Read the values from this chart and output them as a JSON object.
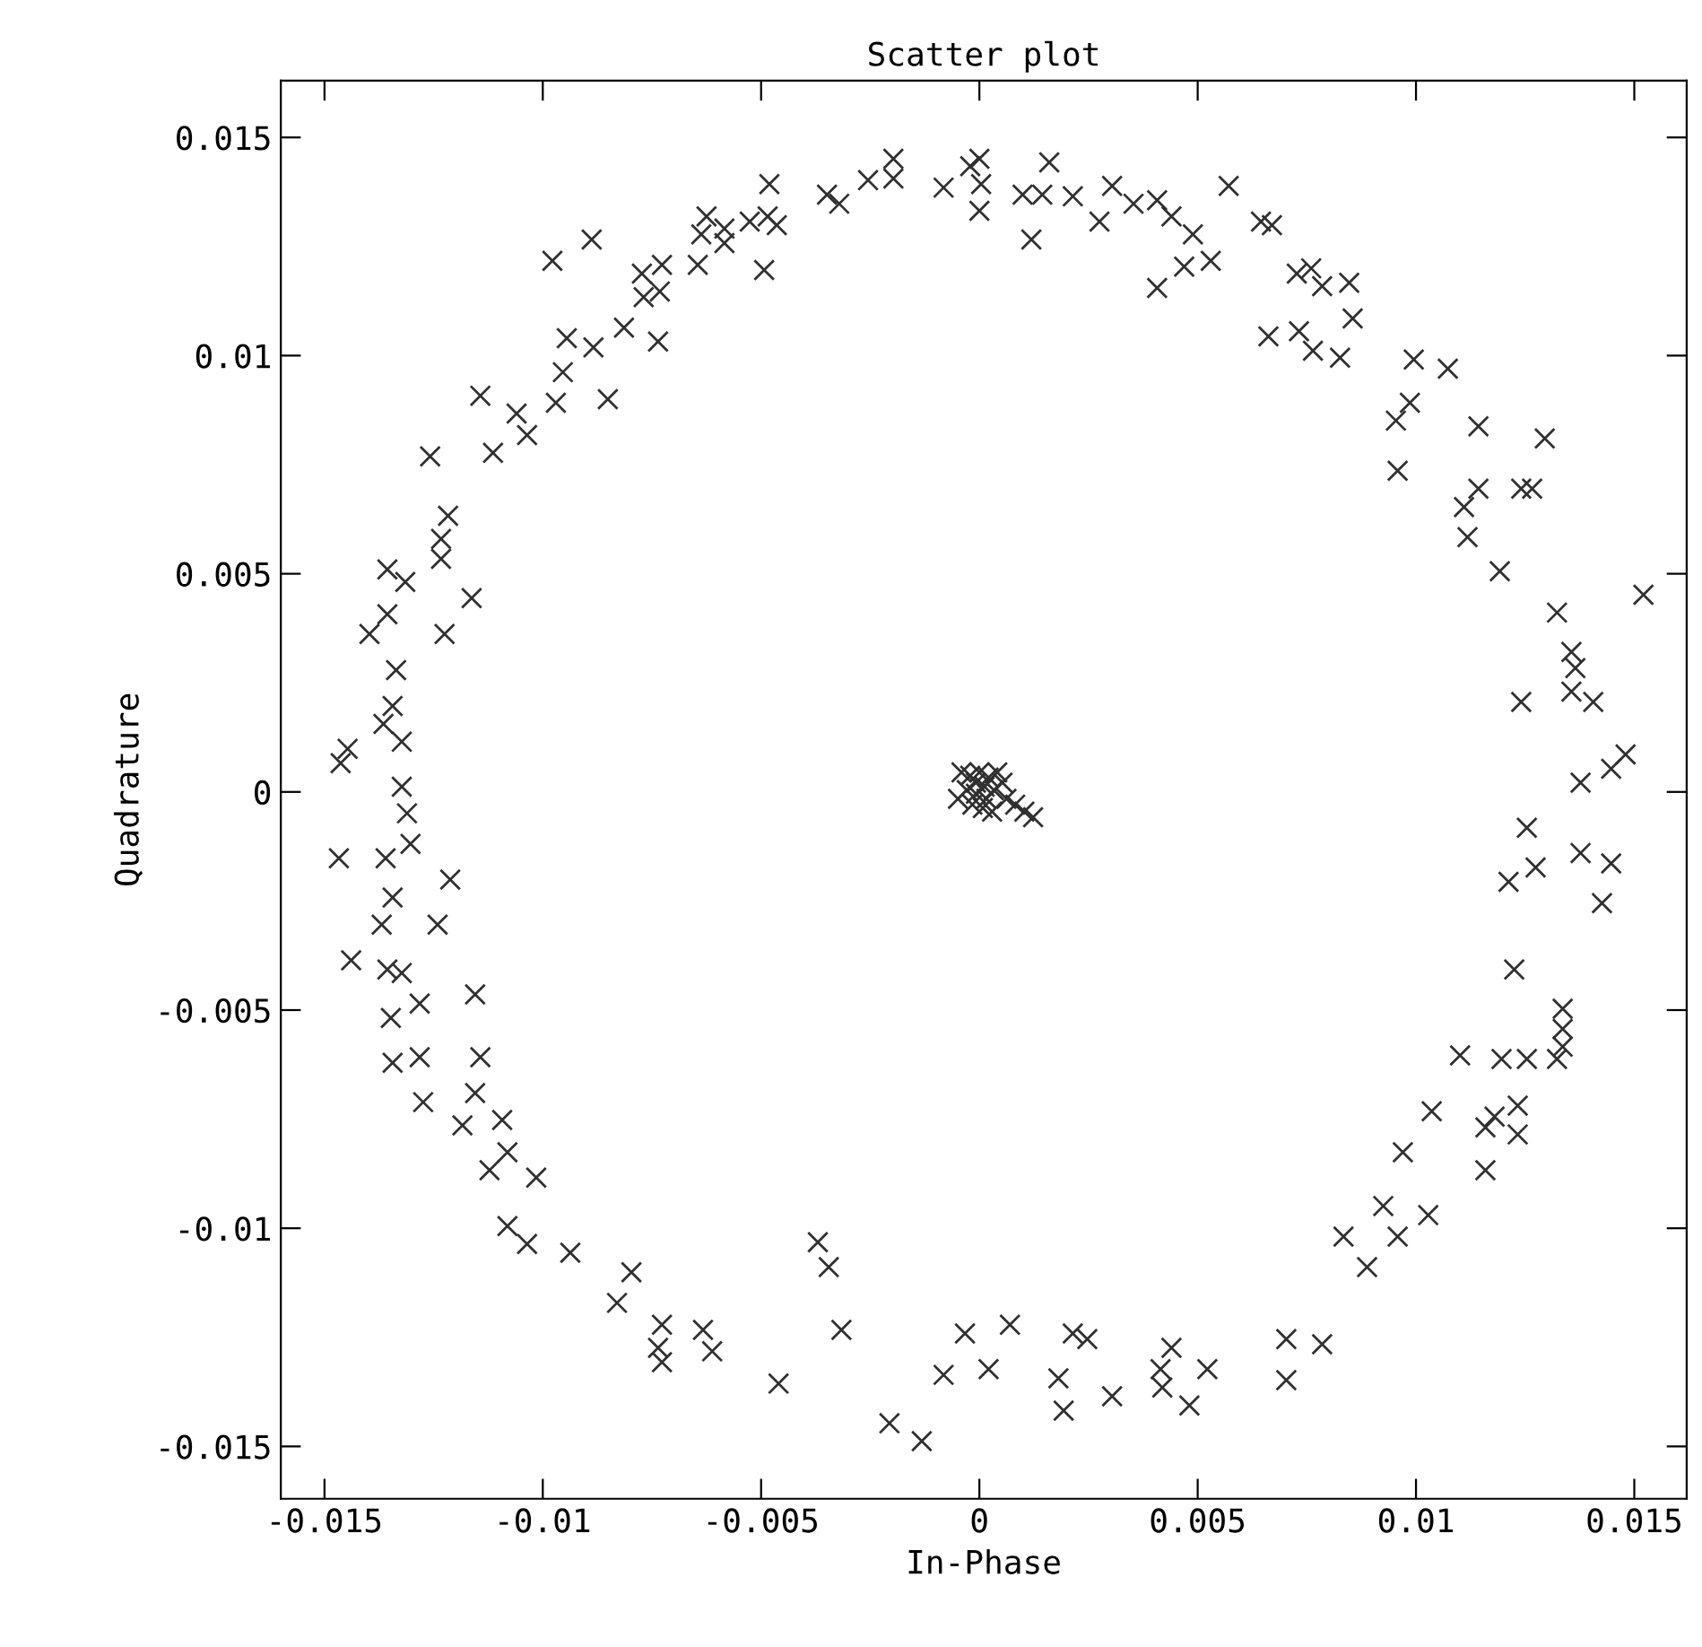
{
  "chart_data": {
    "type": "scatter",
    "title": "Scatter plot",
    "xlabel": "In-Phase",
    "ylabel": "Quadrature",
    "xlim": [
      -0.016,
      0.0162
    ],
    "ylim": [
      -0.0162,
      0.0163
    ],
    "xticks": [
      -0.015,
      -0.01,
      -0.005,
      0,
      0.005,
      0.01,
      0.015
    ],
    "yticks": [
      -0.015,
      -0.01,
      -0.005,
      0,
      0.005,
      0.01,
      0.015
    ],
    "grid": false,
    "legend": false,
    "marker": "cross",
    "series": [
      {
        "color": "#303030",
        "x": [
          -0.00481,
          -0.00349,
          -0.00321,
          -0.00255,
          -0.00197,
          -0.00197,
          -0.00082,
          -0.00021,
          0.0,
          -0.00625,
          -0.00637,
          -0.00584,
          -0.00584,
          -0.00526,
          -0.00485,
          -0.00464,
          -0.00493,
          -0.00645,
          -0.00727,
          -0.00773,
          -0.00769,
          -0.00732,
          -0.00736,
          -0.00814,
          -0.00884,
          -0.00945,
          -0.00954,
          -0.00851,
          -0.0097,
          -0.0106,
          -0.01036,
          -0.01114,
          -0.01143,
          -0.00978,
          -0.00888,
          -0.01258,
          -0.01217,
          -0.01233,
          -0.01233,
          -0.01163,
          -0.01225,
          -0.01356,
          -0.01315,
          -0.01356,
          -0.01397,
          -0.01336,
          -0.01344,
          -0.01365,
          -0.01323,
          -0.01447,
          -0.01463,
          -0.01323,
          0.0,
          4e-05,
          0.0016,
          0.00099,
          0.00144,
          0.00214,
          0.00119,
          0.00304,
          0.00275,
          0.00353,
          0.00407,
          0.0044,
          0.00489,
          0.00469,
          0.0053,
          0.00407,
          0.00571,
          0.00645,
          0.0067,
          0.00727,
          0.0076,
          0.00785,
          0.00847,
          0.00855,
          0.00662,
          0.00732,
          0.00764,
          0.00826,
          0.00995,
          0.01073,
          0.00986,
          0.00954,
          0.01143,
          0.01295,
          0.00958,
          0.01143,
          0.0111,
          0.01118,
          0.01241,
          0.01266,
          0.01192,
          0.01323,
          0.01521,
          0.01356,
          0.01365,
          0.01356,
          0.01406,
          0.01241,
          0.01377,
          0.01447,
          0.0148,
          -0.01311,
          -0.01303,
          -0.01467,
          -0.0136,
          -0.01212,
          -0.01344,
          -0.01369,
          -0.01241,
          -0.01439,
          -0.01356,
          -0.01323,
          -0.01282,
          -0.01348,
          -0.01155,
          -0.01344,
          -0.01282,
          -0.01143,
          -0.01274,
          -0.01155,
          -0.01184,
          -0.01093,
          -0.01081,
          -0.01122,
          -0.01015,
          -0.01081,
          -0.01036,
          -0.00937,
          -0.00797,
          -0.0083,
          -0.00727,
          -0.00736,
          -0.00727,
          -0.00633,
          -0.00612,
          -0.0046,
          -0.0037,
          -0.00345,
          -0.00316,
          -0.00206,
          -0.00132,
          -0.00082,
          -0.00033,
          0.00021,
          0.0007,
          0.00214,
          0.00247,
          0.00181,
          0.00193,
          0.00304,
          0.0044,
          0.00415,
          0.00419,
          0.00481,
          0.00522,
          0.00703,
          0.00785,
          0.00703,
          0.00834,
          0.00925,
          0.00958,
          0.00888,
          0.01028,
          0.0097,
          0.01036,
          0.01159,
          0.0118,
          0.01233,
          0.01233,
          0.01159,
          0.01101,
          0.01196,
          0.01254,
          0.01323,
          0.01336,
          0.01336,
          0.01336,
          0.01225,
          0.01212,
          0.01274,
          0.01254,
          0.01377,
          0.01447,
          0.01426,
          -0.00041,
          -0.00021,
          0.0,
          0.00021,
          0.00041,
          -0.00029,
          -8e-05,
          0.00012,
          0.00033,
          0.00062,
          0.00082,
          0.00103,
          0.00123,
          -0.00016,
          8e-05,
          0.00029,
          -0.00049,
          0.00053,
          0.00016,
          -8e-05
        ],
        "values": [
          0.01393,
          0.01369,
          0.01348,
          0.01402,
          0.01451,
          0.01406,
          0.01385,
          0.01434,
          0.01332,
          0.01319,
          0.01278,
          0.01291,
          0.01258,
          0.01307,
          0.01319,
          0.01299,
          0.01196,
          0.01208,
          0.01208,
          0.01188,
          0.01134,
          0.01147,
          0.01032,
          0.01064,
          0.01019,
          0.0104,
          0.00962,
          0.009,
          0.00892,
          0.00867,
          0.00818,
          0.00777,
          0.00908,
          0.01217,
          0.01266,
          0.00769,
          0.00633,
          0.0058,
          0.00534,
          0.00444,
          0.00362,
          0.0051,
          0.00481,
          0.00407,
          0.00362,
          0.00279,
          0.00197,
          0.00156,
          0.00115,
          0.00099,
          0.00066,
          0.00012,
          0.01451,
          0.01393,
          0.01443,
          0.01369,
          0.01369,
          0.01365,
          0.01266,
          0.01389,
          0.01307,
          0.01348,
          0.01356,
          0.01319,
          0.01278,
          0.01204,
          0.01217,
          0.01155,
          0.01389,
          0.01307,
          0.01299,
          0.01188,
          0.012,
          0.01159,
          0.01167,
          0.01085,
          0.01044,
          0.01056,
          0.01011,
          0.00995,
          0.00991,
          0.0097,
          0.00892,
          0.00851,
          0.00838,
          0.0081,
          0.00736,
          0.00695,
          0.00653,
          0.00584,
          0.00695,
          0.00695,
          0.00506,
          0.00411,
          0.00452,
          0.00321,
          0.00284,
          0.0023,
          0.00206,
          0.00206,
          0.00021,
          0.00053,
          0.00086,
          -0.00049,
          -0.00119,
          -0.00152,
          -0.00152,
          -0.00201,
          -0.00242,
          -0.00304,
          -0.00304,
          -0.00386,
          -0.00407,
          -0.00415,
          -0.00485,
          -0.00518,
          -0.00464,
          -0.00621,
          -0.00608,
          -0.00608,
          -0.00711,
          -0.0069,
          -0.00764,
          -0.00752,
          -0.00826,
          -0.00867,
          -0.00884,
          -0.00995,
          -0.01036,
          -0.01056,
          -0.01101,
          -0.01171,
          -0.01221,
          -0.01274,
          -0.01307,
          -0.01233,
          -0.01282,
          -0.01356,
          -0.01032,
          -0.01089,
          -0.01233,
          -0.01447,
          -0.01488,
          -0.01336,
          -0.01241,
          -0.01323,
          -0.01221,
          -0.01241,
          -0.01254,
          -0.01344,
          -0.01418,
          -0.01385,
          -0.01274,
          -0.01323,
          -0.01365,
          -0.01406,
          -0.01323,
          -0.01254,
          -0.01266,
          -0.01348,
          -0.01019,
          -0.00949,
          -0.01019,
          -0.01089,
          -0.0097,
          -0.00826,
          -0.00732,
          -0.00769,
          -0.00744,
          -0.00719,
          -0.00785,
          -0.00867,
          -0.00604,
          -0.00612,
          -0.00612,
          -0.00612,
          -0.00584,
          -0.00543,
          -0.00497,
          -0.00407,
          -0.00206,
          -0.00173,
          -0.00082,
          -0.0014,
          -0.00164,
          -0.00255,
          0.00045,
          0.00037,
          0.00045,
          0.00033,
          0.00045,
          4e-05,
          -4e-05,
          0.00012,
          4e-05,
          -0.00016,
          -0.00029,
          -0.00045,
          -0.00058,
          -0.00029,
          -0.00037,
          -0.00045,
          -0.00016,
          0.00021,
          -0.00016,
          0.00021
        ]
      }
    ]
  }
}
